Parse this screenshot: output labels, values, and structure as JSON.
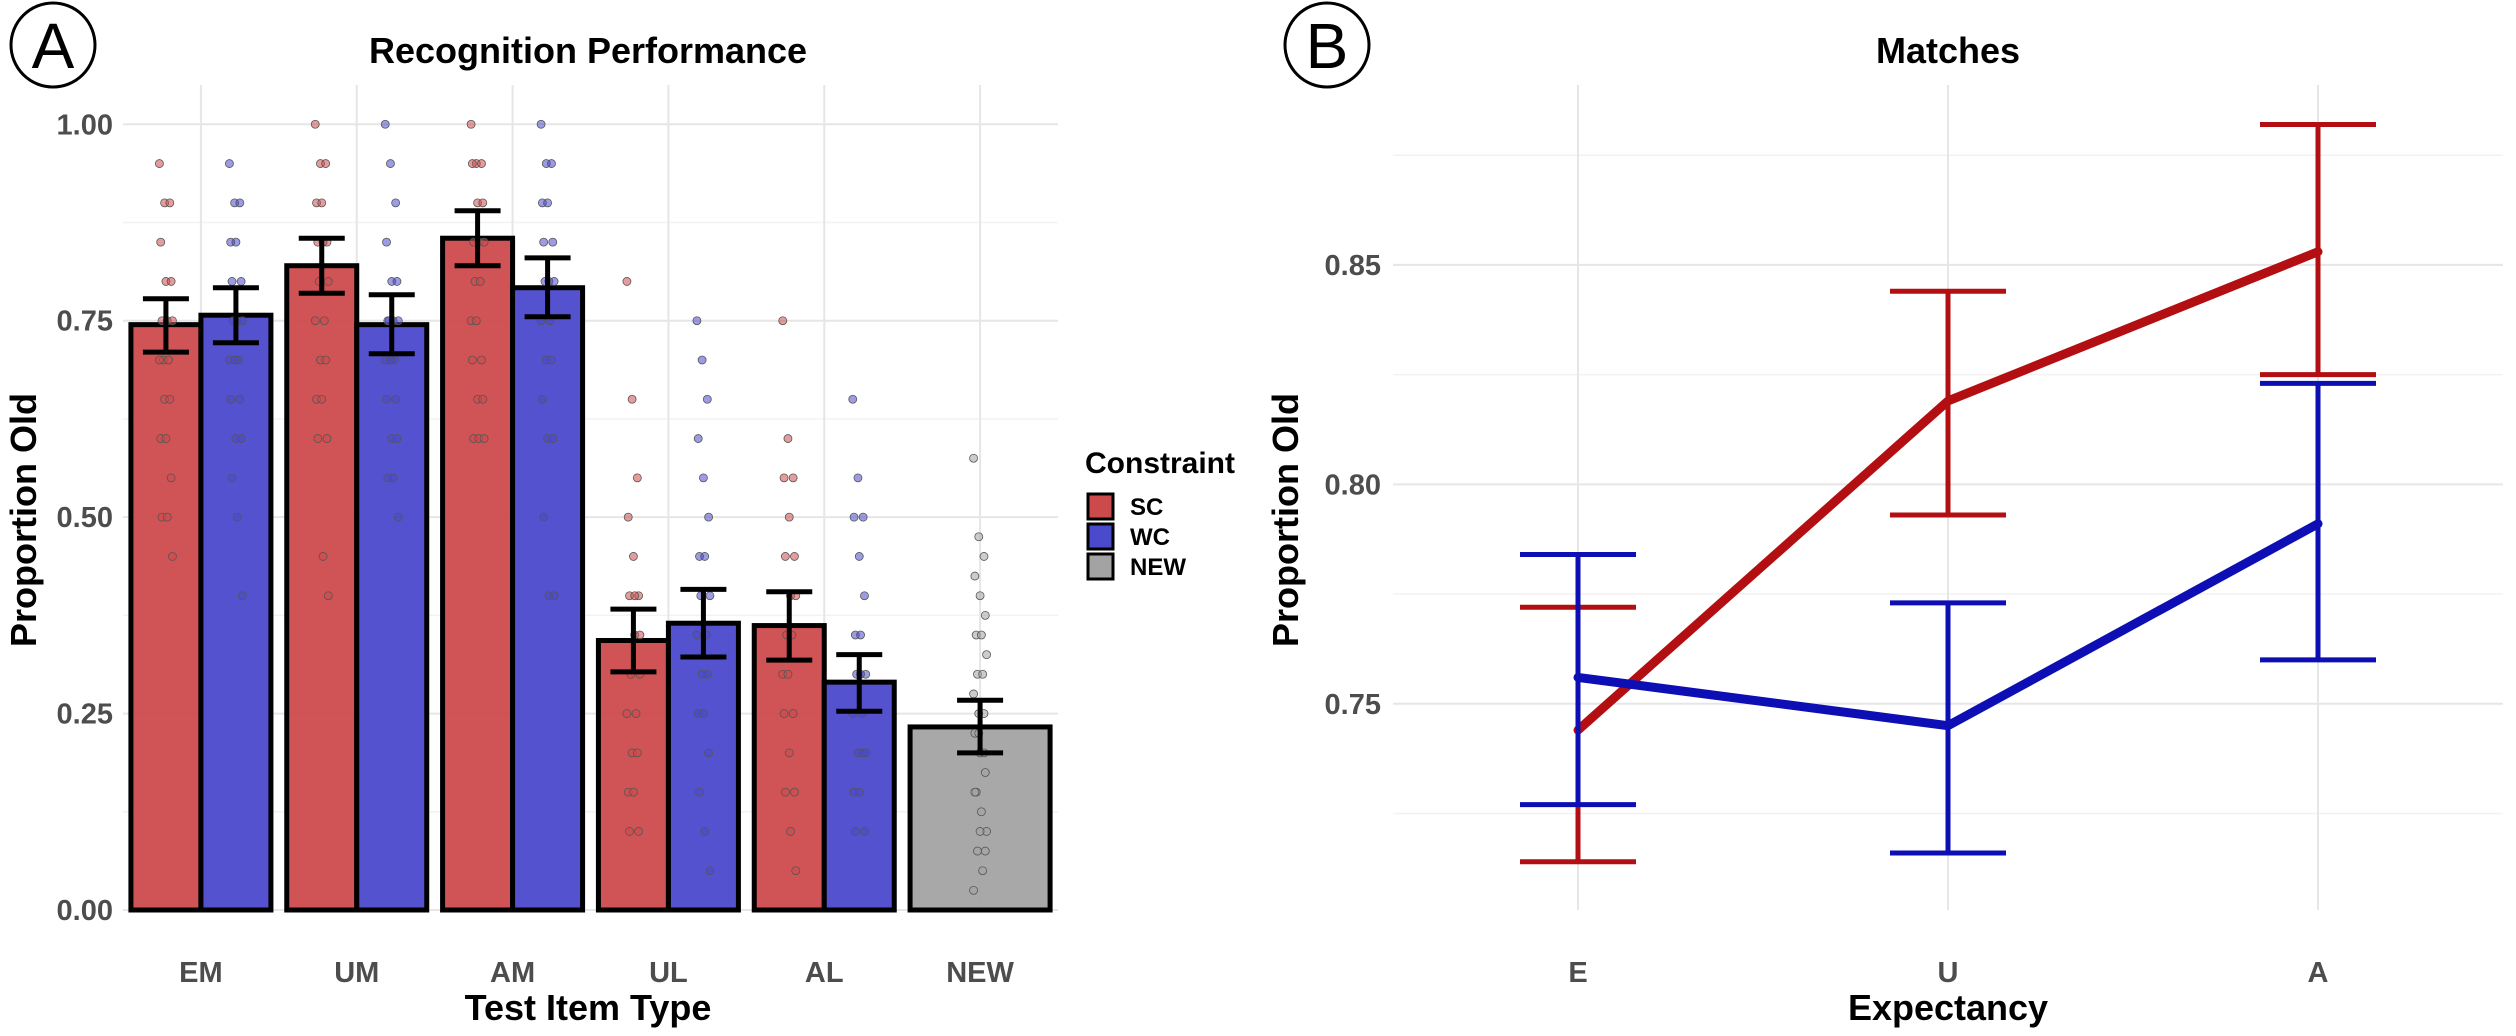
{
  "chart_data": [
    {
      "panel_letter": "A",
      "type": "bar",
      "title": "Recognition Performance",
      "xlabel": "Test Item Type",
      "ylabel": "Proportion Old",
      "categories": [
        "EM",
        "UM",
        "AM",
        "UL",
        "AL",
        "NEW"
      ],
      "ylim": [
        0,
        1.05
      ],
      "yticks": [
        0,
        0.25,
        0.5,
        0.75,
        1.0
      ],
      "ytick_labels": [
        "0.00",
        "0.25",
        "0.50",
        "0.75",
        "1.00"
      ],
      "grid": true,
      "legend": {
        "title": "Constraint",
        "position": "right",
        "entries": [
          {
            "label": "SC",
            "color": "#cd4a4c"
          },
          {
            "label": "WC",
            "color": "#4b49cc"
          },
          {
            "label": "NEW",
            "color": "#a3a3a3"
          }
        ]
      },
      "series": [
        {
          "name": "SC",
          "color": "#cd4a4c",
          "values": [
            0.745,
            0.82,
            0.855,
            0.343,
            0.362,
            null
          ],
          "ci_low": [
            0.71,
            0.785,
            0.82,
            0.303,
            0.318,
            null
          ],
          "ci_high": [
            0.778,
            0.855,
            0.89,
            0.383,
            0.405,
            null
          ],
          "points": [
            [
              0.95,
              0.9,
              0.9,
              0.85,
              0.8,
              0.8,
              0.75,
              0.75,
              0.75,
              0.7,
              0.7,
              0.7,
              0.65,
              0.65,
              0.6,
              0.6,
              0.55,
              0.5,
              0.5,
              0.45
            ],
            [
              1.0,
              0.95,
              0.95,
              0.9,
              0.9,
              0.85,
              0.85,
              0.85,
              0.8,
              0.8,
              0.75,
              0.75,
              0.7,
              0.7,
              0.65,
              0.65,
              0.6,
              0.6,
              0.45,
              0.4
            ],
            [
              1.0,
              0.95,
              0.95,
              0.95,
              0.9,
              0.9,
              0.85,
              0.85,
              0.85,
              0.8,
              0.8,
              0.75,
              0.75,
              0.7,
              0.7,
              0.65,
              0.65,
              0.6,
              0.6,
              0.6
            ],
            [
              0.8,
              0.65,
              0.55,
              0.5,
              0.45,
              0.4,
              0.4,
              0.35,
              0.3,
              0.3,
              0.25,
              0.25,
              0.2,
              0.2,
              0.15,
              0.15,
              0.1,
              0.1,
              0.4,
              0.35
            ],
            [
              0.75,
              0.6,
              0.55,
              0.55,
              0.5,
              0.45,
              0.45,
              0.4,
              0.4,
              0.35,
              0.35,
              0.3,
              0.3,
              0.25,
              0.25,
              0.2,
              0.15,
              0.15,
              0.1,
              0.05
            ]
          ]
        },
        {
          "name": "WC",
          "color": "#4b49cc",
          "values": [
            0.757,
            0.745,
            0.792,
            0.365,
            0.29,
            null
          ],
          "ci_low": [
            0.722,
            0.708,
            0.755,
            0.322,
            0.253,
            null
          ],
          "ci_high": [
            0.792,
            0.783,
            0.83,
            0.408,
            0.325,
            null
          ],
          "points": [
            [
              0.95,
              0.9,
              0.9,
              0.85,
              0.85,
              0.8,
              0.8,
              0.75,
              0.75,
              0.75,
              0.7,
              0.7,
              0.7,
              0.65,
              0.65,
              0.6,
              0.6,
              0.55,
              0.5,
              0.4
            ],
            [
              1.0,
              0.95,
              0.9,
              0.85,
              0.8,
              0.8,
              0.75,
              0.75,
              0.75,
              0.75,
              0.7,
              0.7,
              0.7,
              0.65,
              0.65,
              0.6,
              0.6,
              0.55,
              0.55,
              0.5
            ],
            [
              1.0,
              0.95,
              0.95,
              0.9,
              0.9,
              0.85,
              0.85,
              0.8,
              0.8,
              0.8,
              0.75,
              0.75,
              0.7,
              0.7,
              0.65,
              0.6,
              0.6,
              0.5,
              0.4,
              0.4
            ],
            [
              0.75,
              0.7,
              0.65,
              0.6,
              0.55,
              0.5,
              0.45,
              0.45,
              0.4,
              0.4,
              0.35,
              0.35,
              0.3,
              0.3,
              0.25,
              0.25,
              0.2,
              0.15,
              0.1,
              0.05
            ],
            [
              0.65,
              0.55,
              0.5,
              0.5,
              0.45,
              0.4,
              0.35,
              0.35,
              0.3,
              0.3,
              0.25,
              0.25,
              0.2,
              0.2,
              0.15,
              0.15,
              0.1,
              0.1,
              0.3,
              0.2
            ]
          ]
        },
        {
          "name": "NEW",
          "color": "#a3a3a3",
          "values": [
            null,
            null,
            null,
            null,
            null,
            0.233
          ],
          "ci_low": [
            null,
            null,
            null,
            null,
            null,
            0.2
          ],
          "ci_high": [
            null,
            null,
            null,
            null,
            null,
            0.267
          ],
          "points": [
            [],
            [],
            [],
            [],
            [],
            [
              0.575,
              0.475,
              0.45,
              0.425,
              0.4,
              0.375,
              0.35,
              0.35,
              0.325,
              0.3,
              0.3,
              0.275,
              0.25,
              0.25,
              0.225,
              0.2,
              0.175,
              0.15,
              0.125,
              0.1,
              0.075,
              0.05,
              0.025,
              0.225,
              0.2,
              0.15,
              0.1,
              0.075
            ]
          ]
        }
      ]
    },
    {
      "panel_letter": "B",
      "type": "line",
      "title": "Matches",
      "xlabel": "Expectancy",
      "ylabel": "Proportion Old",
      "x": [
        "E",
        "U",
        "A"
      ],
      "ylim": [
        0.703,
        0.891
      ],
      "yticks": [
        0.75,
        0.8,
        0.85
      ],
      "ytick_labels": [
        "0.75",
        "0.80",
        "0.85"
      ],
      "grid": true,
      "series": [
        {
          "name": "SC",
          "color": "#b30e11",
          "values": [
            0.744,
            0.819,
            0.853
          ],
          "ci_low": [
            0.714,
            0.793,
            0.825
          ],
          "ci_high": [
            0.772,
            0.844,
            0.882
          ]
        },
        {
          "name": "WC",
          "color": "#0d0eb3",
          "values": [
            0.756,
            0.745,
            0.791
          ],
          "ci_low": [
            0.727,
            0.716,
            0.76
          ],
          "ci_high": [
            0.784,
            0.773,
            0.823
          ]
        }
      ]
    }
  ]
}
